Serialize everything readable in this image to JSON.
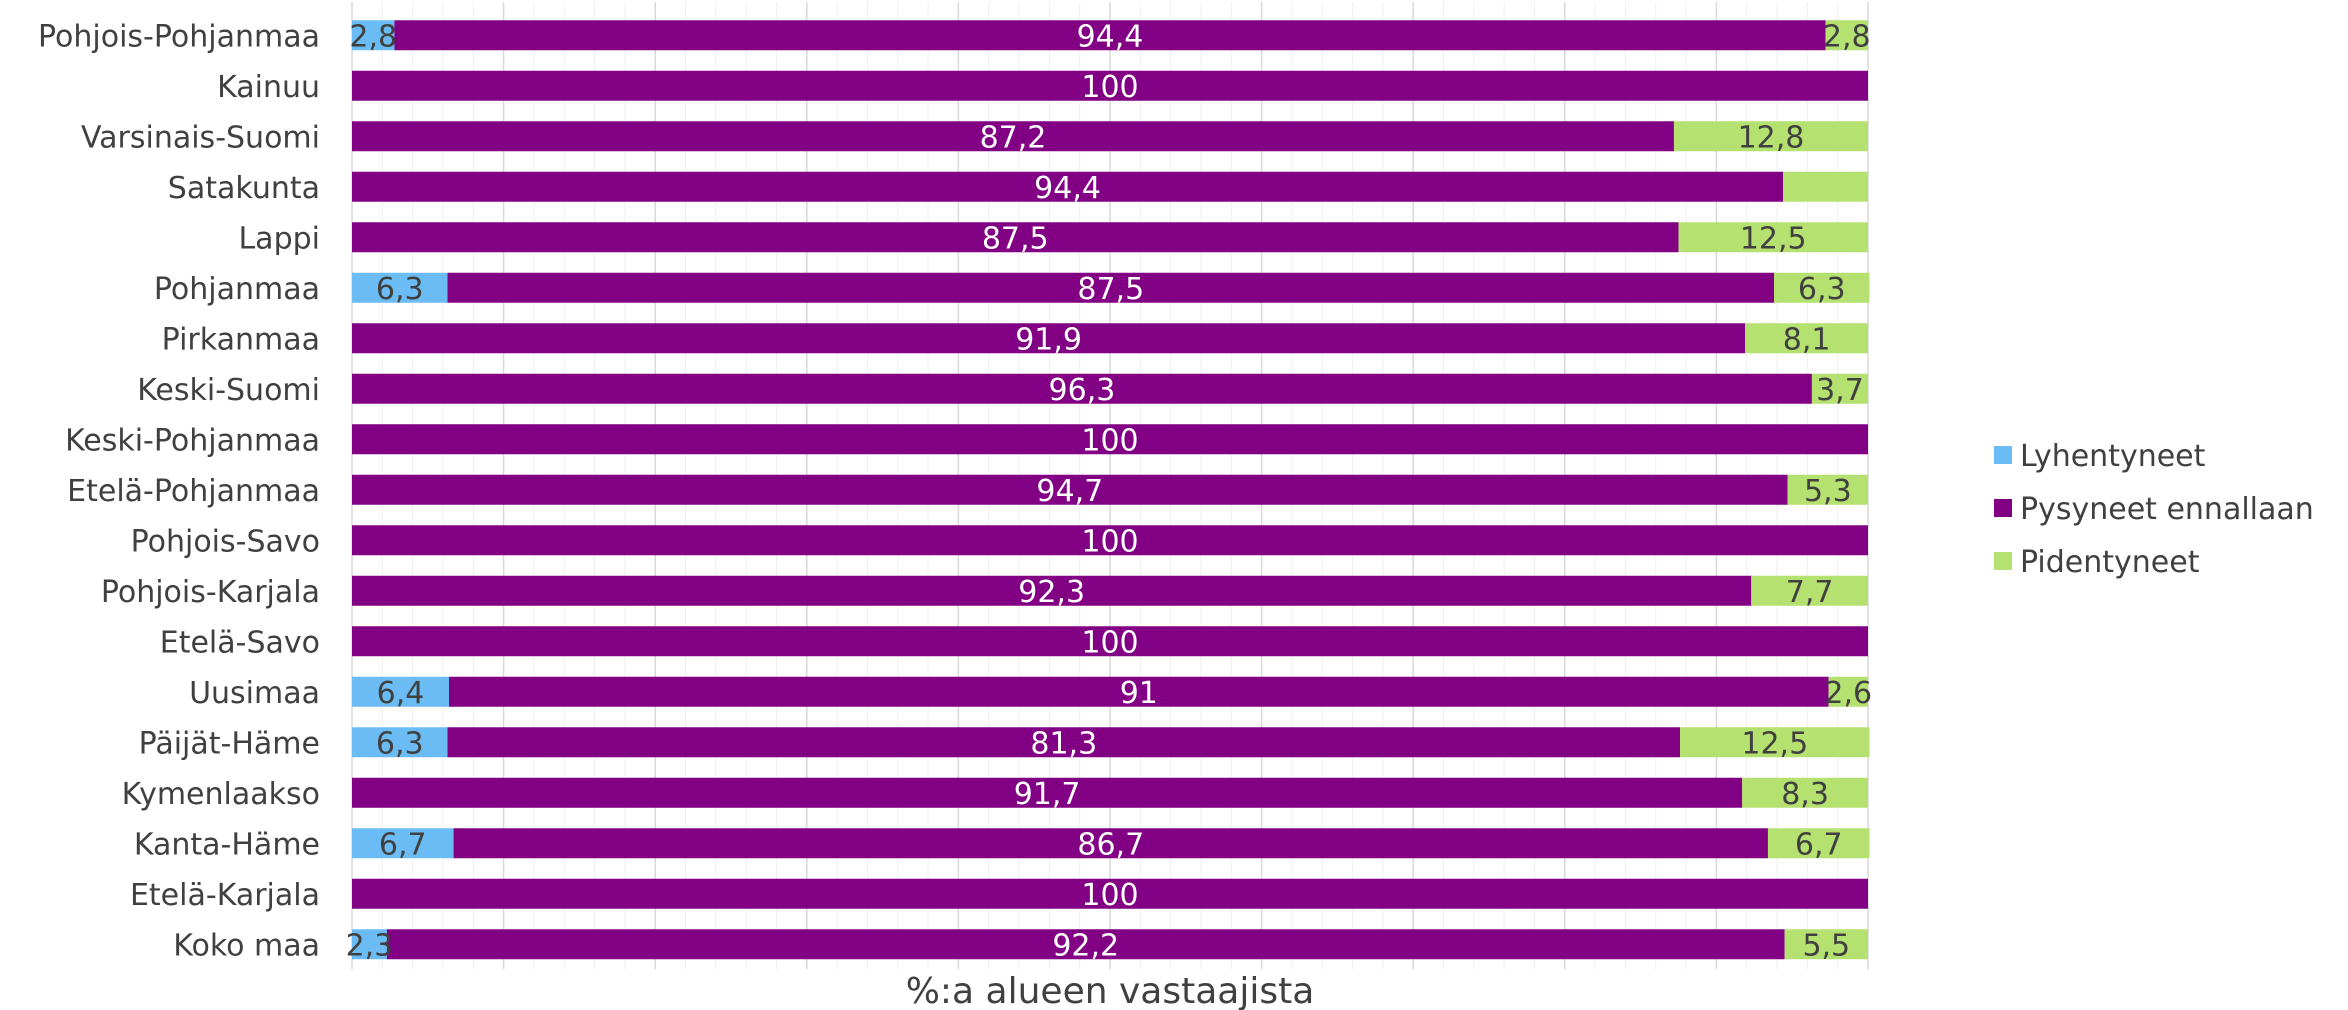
{
  "chart_data": {
    "type": "bar",
    "orientation": "horizontal",
    "stacked": true,
    "xlabel": "%:a alueen vastaajista",
    "xlim": [
      0,
      100
    ],
    "grid": true,
    "legend_position": "right",
    "categories": [
      "Pohjois-Pohjanmaa",
      "Kainuu",
      "Varsinais-Suomi",
      "Satakunta",
      "Lappi",
      "Pohjanmaa",
      "Pirkanmaa",
      "Keski-Suomi",
      "Keski-Pohjanmaa",
      "Etelä-Pohjanmaa",
      "Pohjois-Savo",
      "Pohjois-Karjala",
      "Etelä-Savo",
      "Uusimaa",
      "Päijät-Häme",
      "Kymenlaakso",
      "Kanta-Häme",
      "Etelä-Karjala",
      "Koko maa"
    ],
    "series": [
      {
        "name": "Lyhentyneet",
        "color": "#6bbcf4",
        "label_color": "#404040",
        "values": [
          2.8,
          0,
          0,
          0,
          0,
          6.3,
          0,
          0,
          0,
          0,
          0,
          0,
          0,
          6.4,
          6.3,
          0,
          6.7,
          0,
          2.3
        ],
        "labels": [
          "2,8",
          "",
          "",
          "",
          "",
          "6,3",
          "",
          "",
          "",
          "",
          "",
          "",
          "",
          "6,4",
          "6,3",
          "",
          "6,7",
          "",
          "2,3"
        ]
      },
      {
        "name": "Pysyneet ennallaan",
        "color": "#820083",
        "label_color": "#ffffff",
        "values": [
          94.4,
          100,
          87.2,
          94.4,
          87.5,
          87.5,
          91.9,
          96.3,
          100,
          94.7,
          100,
          92.3,
          100,
          91,
          81.3,
          91.7,
          86.7,
          100,
          92.2
        ],
        "labels": [
          "94,4",
          "100",
          "87,2",
          "94,4",
          "87,5",
          "87,5",
          "91,9",
          "96,3",
          "100",
          "94,7",
          "100",
          "92,3",
          "100",
          "91",
          "81,3",
          "91,7",
          "86,7",
          "100",
          "92,2"
        ]
      },
      {
        "name": "Pidentyneet",
        "color": "#b5e170",
        "label_color": "#404040",
        "values": [
          2.8,
          0,
          12.8,
          5.6,
          12.5,
          6.3,
          8.1,
          3.7,
          0,
          5.3,
          0,
          7.7,
          0,
          2.6,
          12.5,
          8.3,
          6.7,
          0,
          5.5
        ],
        "labels": [
          "2,8",
          "",
          "12,8",
          "",
          "12,5",
          "6,3",
          "8,1",
          "3,7",
          "",
          "5,3",
          "",
          "7,7",
          "",
          "2,6",
          "12,5",
          "8,3",
          "6,7",
          "",
          "5,5"
        ]
      }
    ]
  }
}
